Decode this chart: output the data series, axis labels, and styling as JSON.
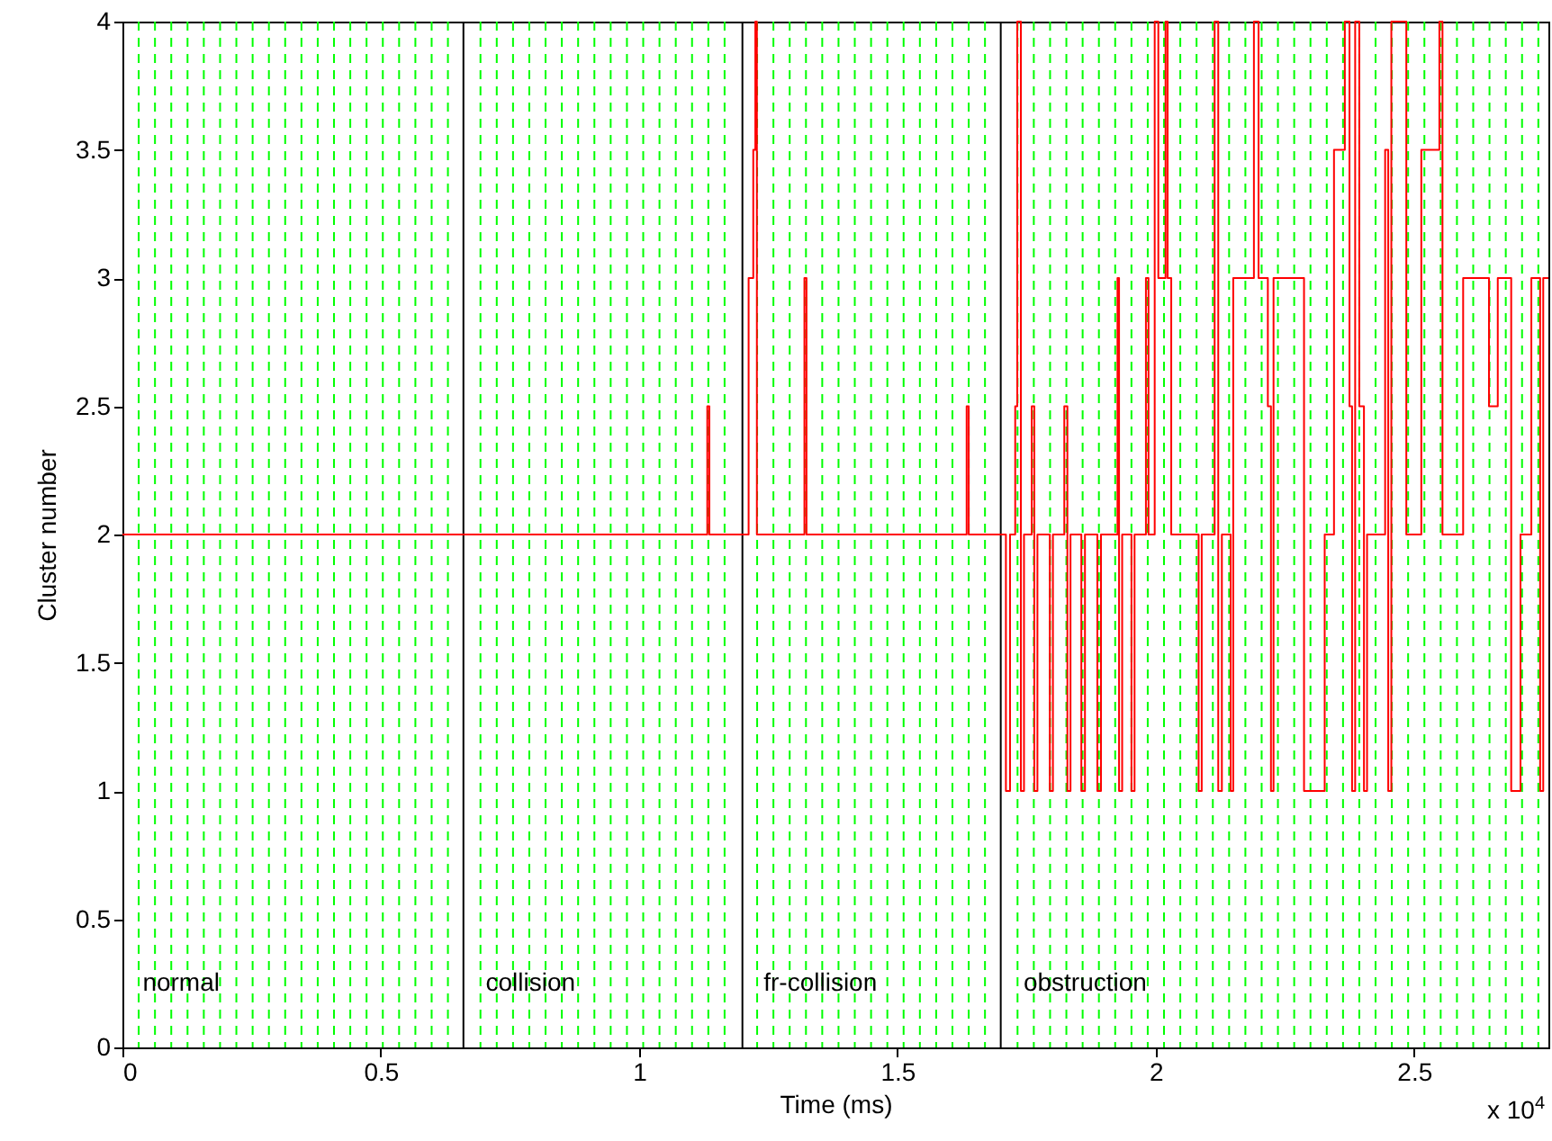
{
  "chart_data": {
    "type": "step",
    "xlabel": "Time (ms)",
    "ylabel": "Cluster number",
    "xlim": [
      0,
      2.76
    ],
    "ylim": [
      0,
      4
    ],
    "xticks": [
      0,
      0.5,
      1,
      1.5,
      2,
      2.5
    ],
    "yticks": [
      0,
      0.5,
      1,
      1.5,
      2,
      2.5,
      3,
      3.5,
      4
    ],
    "grid": false,
    "annotations": [
      {
        "text": "normal",
        "x": 0.039,
        "y": 0.25
      },
      {
        "text": "collision",
        "x": 0.703,
        "y": 0.25
      },
      {
        "text": "fr-collision",
        "x": 1.241,
        "y": 0.25
      },
      {
        "text": "obstruction",
        "x": 1.744,
        "y": 0.25
      },
      "x 10$^{4}$"
    ],
    "series": [
      {
        "color": "#ff0000",
        "x": [
          0,
          1.132,
          1.136,
          1.212,
          1.221,
          1.225,
          1.228,
          1.32,
          1.324,
          1.634,
          1.638,
          1.71,
          1.718,
          1.728,
          1.732,
          1.739,
          1.745,
          1.76,
          1.765,
          1.771,
          1.795,
          1.801,
          1.823,
          1.829,
          1.835,
          1.856,
          1.863,
          1.887,
          1.894,
          1.926,
          1.929,
          1.935,
          1.953,
          1.959,
          1.981,
          1.986,
          1.998,
          2.005,
          2.019,
          2.023,
          2.03,
          2.083,
          2.089,
          2.114,
          2.121,
          2.128,
          2.145,
          2.15,
          2.19,
          2.199,
          2.217,
          2.223,
          2.228,
          2.287,
          2.327,
          2.345,
          2.366,
          2.375,
          2.38,
          2.386,
          2.394,
          2.403,
          2.409,
          2.444,
          2.45,
          2.456,
          2.485,
          2.514,
          2.549,
          2.555,
          2.595,
          2.645,
          2.662,
          2.688,
          2.706,
          2.727,
          2.744,
          2.75,
          2.76
        ],
        "values": [
          2,
          2.5,
          2,
          3,
          3.5,
          4,
          2,
          3,
          2,
          2.5,
          2,
          1,
          2,
          2.5,
          4,
          1,
          2,
          2.5,
          1,
          2,
          1,
          2,
          2.5,
          1,
          2,
          1,
          2,
          1,
          2,
          3,
          1,
          2,
          1,
          2,
          3,
          2,
          4,
          3,
          4,
          3,
          2,
          1,
          2,
          4,
          1,
          2,
          1,
          3,
          4,
          3,
          2.5,
          1,
          3,
          1,
          2,
          3.5,
          4,
          2.5,
          1,
          4,
          2.5,
          1,
          2,
          3.5,
          1,
          4,
          2,
          3.5,
          4,
          2,
          3,
          2.5,
          3,
          1,
          2,
          3,
          1,
          3,
          3
        ]
      }
    ],
    "ref_lines": [
      {
        "axis": "x",
        "value": 0.66,
        "color": "#000000",
        "line_style": "solid"
      },
      {
        "axis": "x",
        "value": 1.2,
        "color": "#000000",
        "line_style": "solid"
      },
      {
        "axis": "x",
        "value": 1.7,
        "color": "#000000",
        "line_style": "solid"
      },
      {
        "axis": "x",
        "value": 0.0315,
        "color": "#00ff00",
        "line_style": "dashed"
      },
      {
        "axis": "x",
        "value": 0.063,
        "color": "#00ff00",
        "line_style": "dashed"
      },
      {
        "axis": "x",
        "value": 0.0945,
        "color": "#00ff00",
        "line_style": "dashed"
      },
      {
        "axis": "x",
        "value": 0.126,
        "color": "#00ff00",
        "line_style": "dashed"
      },
      {
        "axis": "x",
        "value": 0.1575,
        "color": "#00ff00",
        "line_style": "dashed"
      },
      {
        "axis": "x",
        "value": 0.189,
        "color": "#00ff00",
        "line_style": "dashed"
      },
      {
        "axis": "x",
        "value": 0.2205,
        "color": "#00ff00",
        "line_style": "dashed"
      },
      {
        "axis": "x",
        "value": 0.252,
        "color": "#00ff00",
        "line_style": "dashed"
      },
      {
        "axis": "x",
        "value": 0.2835,
        "color": "#00ff00",
        "line_style": "dashed"
      },
      {
        "axis": "x",
        "value": 0.315,
        "color": "#00ff00",
        "line_style": "dashed"
      },
      {
        "axis": "x",
        "value": 0.3465,
        "color": "#00ff00",
        "line_style": "dashed"
      },
      {
        "axis": "x",
        "value": 0.378,
        "color": "#00ff00",
        "line_style": "dashed"
      },
      {
        "axis": "x",
        "value": 0.4095,
        "color": "#00ff00",
        "line_style": "dashed"
      },
      {
        "axis": "x",
        "value": 0.441,
        "color": "#00ff00",
        "line_style": "dashed"
      },
      {
        "axis": "x",
        "value": 0.4725,
        "color": "#00ff00",
        "line_style": "dashed"
      },
      {
        "axis": "x",
        "value": 0.504,
        "color": "#00ff00",
        "line_style": "dashed"
      },
      {
        "axis": "x",
        "value": 0.5355,
        "color": "#00ff00",
        "line_style": "dashed"
      },
      {
        "axis": "x",
        "value": 0.567,
        "color": "#00ff00",
        "line_style": "dashed"
      },
      {
        "axis": "x",
        "value": 0.5985,
        "color": "#00ff00",
        "line_style": "dashed"
      },
      {
        "axis": "x",
        "value": 0.63,
        "color": "#00ff00",
        "line_style": "dashed"
      },
      {
        "axis": "x",
        "value": 0.693,
        "color": "#00ff00",
        "line_style": "dashed"
      },
      {
        "axis": "x",
        "value": 0.7245,
        "color": "#00ff00",
        "line_style": "dashed"
      },
      {
        "axis": "x",
        "value": 0.756,
        "color": "#00ff00",
        "line_style": "dashed"
      },
      {
        "axis": "x",
        "value": 0.7875,
        "color": "#00ff00",
        "line_style": "dashed"
      },
      {
        "axis": "x",
        "value": 0.819,
        "color": "#00ff00",
        "line_style": "dashed"
      },
      {
        "axis": "x",
        "value": 0.8505,
        "color": "#00ff00",
        "line_style": "dashed"
      },
      {
        "axis": "x",
        "value": 0.882,
        "color": "#00ff00",
        "line_style": "dashed"
      },
      {
        "axis": "x",
        "value": 0.9135,
        "color": "#00ff00",
        "line_style": "dashed"
      },
      {
        "axis": "x",
        "value": 0.945,
        "color": "#00ff00",
        "line_style": "dashed"
      },
      {
        "axis": "x",
        "value": 0.9765,
        "color": "#00ff00",
        "line_style": "dashed"
      },
      {
        "axis": "x",
        "value": 1.008,
        "color": "#00ff00",
        "line_style": "dashed"
      },
      {
        "axis": "x",
        "value": 1.0395,
        "color": "#00ff00",
        "line_style": "dashed"
      },
      {
        "axis": "x",
        "value": 1.071,
        "color": "#00ff00",
        "line_style": "dashed"
      },
      {
        "axis": "x",
        "value": 1.1025,
        "color": "#00ff00",
        "line_style": "dashed"
      },
      {
        "axis": "x",
        "value": 1.134,
        "color": "#00ff00",
        "line_style": "dashed"
      },
      {
        "axis": "x",
        "value": 1.1655,
        "color": "#00ff00",
        "line_style": "dashed"
      },
      {
        "axis": "x",
        "value": 1.2285,
        "color": "#00ff00",
        "line_style": "dashed"
      },
      {
        "axis": "x",
        "value": 1.26,
        "color": "#00ff00",
        "line_style": "dashed"
      },
      {
        "axis": "x",
        "value": 1.2915,
        "color": "#00ff00",
        "line_style": "dashed"
      },
      {
        "axis": "x",
        "value": 1.323,
        "color": "#00ff00",
        "line_style": "dashed"
      },
      {
        "axis": "x",
        "value": 1.3545,
        "color": "#00ff00",
        "line_style": "dashed"
      },
      {
        "axis": "x",
        "value": 1.386,
        "color": "#00ff00",
        "line_style": "dashed"
      },
      {
        "axis": "x",
        "value": 1.4175,
        "color": "#00ff00",
        "line_style": "dashed"
      },
      {
        "axis": "x",
        "value": 1.449,
        "color": "#00ff00",
        "line_style": "dashed"
      },
      {
        "axis": "x",
        "value": 1.4805,
        "color": "#00ff00",
        "line_style": "dashed"
      },
      {
        "axis": "x",
        "value": 1.512,
        "color": "#00ff00",
        "line_style": "dashed"
      },
      {
        "axis": "x",
        "value": 1.5435,
        "color": "#00ff00",
        "line_style": "dashed"
      },
      {
        "axis": "x",
        "value": 1.575,
        "color": "#00ff00",
        "line_style": "dashed"
      },
      {
        "axis": "x",
        "value": 1.6065,
        "color": "#00ff00",
        "line_style": "dashed"
      },
      {
        "axis": "x",
        "value": 1.638,
        "color": "#00ff00",
        "line_style": "dashed"
      },
      {
        "axis": "x",
        "value": 1.6695,
        "color": "#00ff00",
        "line_style": "dashed"
      },
      {
        "axis": "x",
        "value": 1.7325,
        "color": "#00ff00",
        "line_style": "dashed"
      },
      {
        "axis": "x",
        "value": 1.764,
        "color": "#00ff00",
        "line_style": "dashed"
      },
      {
        "axis": "x",
        "value": 1.7955,
        "color": "#00ff00",
        "line_style": "dashed"
      },
      {
        "axis": "x",
        "value": 1.827,
        "color": "#00ff00",
        "line_style": "dashed"
      },
      {
        "axis": "x",
        "value": 1.8585,
        "color": "#00ff00",
        "line_style": "dashed"
      },
      {
        "axis": "x",
        "value": 1.89,
        "color": "#00ff00",
        "line_style": "dashed"
      },
      {
        "axis": "x",
        "value": 1.9215,
        "color": "#00ff00",
        "line_style": "dashed"
      },
      {
        "axis": "x",
        "value": 1.953,
        "color": "#00ff00",
        "line_style": "dashed"
      },
      {
        "axis": "x",
        "value": 1.9845,
        "color": "#00ff00",
        "line_style": "dashed"
      },
      {
        "axis": "x",
        "value": 2.016,
        "color": "#00ff00",
        "line_style": "dashed"
      },
      {
        "axis": "x",
        "value": 2.0475,
        "color": "#00ff00",
        "line_style": "dashed"
      },
      {
        "axis": "x",
        "value": 2.079,
        "color": "#00ff00",
        "line_style": "dashed"
      },
      {
        "axis": "x",
        "value": 2.1105,
        "color": "#00ff00",
        "line_style": "dashed"
      },
      {
        "axis": "x",
        "value": 2.142,
        "color": "#00ff00",
        "line_style": "dashed"
      },
      {
        "axis": "x",
        "value": 2.1735,
        "color": "#00ff00",
        "line_style": "dashed"
      },
      {
        "axis": "x",
        "value": 2.205,
        "color": "#00ff00",
        "line_style": "dashed"
      },
      {
        "axis": "x",
        "value": 2.2365,
        "color": "#00ff00",
        "line_style": "dashed"
      },
      {
        "axis": "x",
        "value": 2.268,
        "color": "#00ff00",
        "line_style": "dashed"
      },
      {
        "axis": "x",
        "value": 2.2995,
        "color": "#00ff00",
        "line_style": "dashed"
      },
      {
        "axis": "x",
        "value": 2.331,
        "color": "#00ff00",
        "line_style": "dashed"
      },
      {
        "axis": "x",
        "value": 2.3625,
        "color": "#00ff00",
        "line_style": "dashed"
      },
      {
        "axis": "x",
        "value": 2.394,
        "color": "#00ff00",
        "line_style": "dashed"
      },
      {
        "axis": "x",
        "value": 2.4255,
        "color": "#00ff00",
        "line_style": "dashed"
      },
      {
        "axis": "x",
        "value": 2.457,
        "color": "#00ff00",
        "line_style": "dashed"
      },
      {
        "axis": "x",
        "value": 2.4885,
        "color": "#00ff00",
        "line_style": "dashed"
      },
      {
        "axis": "x",
        "value": 2.52,
        "color": "#00ff00",
        "line_style": "dashed"
      },
      {
        "axis": "x",
        "value": 2.5515,
        "color": "#00ff00",
        "line_style": "dashed"
      },
      {
        "axis": "x",
        "value": 2.583,
        "color": "#00ff00",
        "line_style": "dashed"
      },
      {
        "axis": "x",
        "value": 2.6145,
        "color": "#00ff00",
        "line_style": "dashed"
      },
      {
        "axis": "x",
        "value": 2.646,
        "color": "#00ff00",
        "line_style": "dashed"
      },
      {
        "axis": "x",
        "value": 2.6775,
        "color": "#00ff00",
        "line_style": "dashed"
      },
      {
        "axis": "x",
        "value": 2.709,
        "color": "#00ff00",
        "line_style": "dashed"
      },
      {
        "axis": "x",
        "value": 2.7405,
        "color": "#00ff00",
        "line_style": "dashed"
      }
    ]
  }
}
